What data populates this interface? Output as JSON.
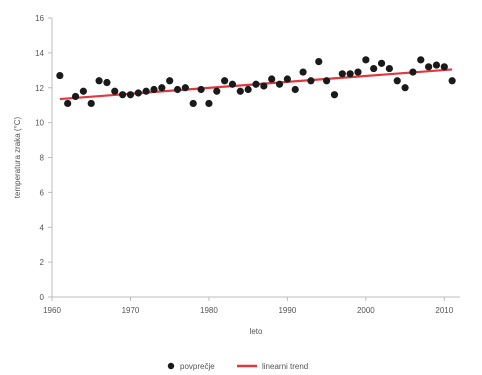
{
  "chart_data": {
    "type": "scatter",
    "title": "",
    "xlabel": "leto",
    "ylabel": "temperatura zraka (°C)",
    "xlim": [
      1960,
      2012
    ],
    "ylim": [
      0,
      16
    ],
    "x_ticks": [
      1960,
      1970,
      1980,
      1990,
      2000,
      2010
    ],
    "x_tick_labels": [
      "1960",
      "1970",
      "1980",
      "1990",
      "2000",
      "2010"
    ],
    "y_ticks": [
      0,
      2,
      4,
      6,
      8,
      10,
      12,
      14,
      16
    ],
    "y_tick_labels": [
      "0",
      "2",
      "4",
      "6",
      "8",
      "10",
      "12",
      "14",
      "16"
    ],
    "grid": false,
    "legend_position": "bottom",
    "series": [
      {
        "name": "povprečje",
        "kind": "scatter",
        "color": "#1a1a1a",
        "x": [
          1961,
          1962,
          1963,
          1964,
          1965,
          1966,
          1967,
          1968,
          1969,
          1970,
          1971,
          1972,
          1973,
          1974,
          1975,
          1976,
          1977,
          1978,
          1979,
          1980,
          1981,
          1982,
          1983,
          1984,
          1985,
          1986,
          1987,
          1988,
          1989,
          1990,
          1991,
          1992,
          1993,
          1994,
          1995,
          1996,
          1997,
          1998,
          1999,
          2000,
          2001,
          2002,
          2003,
          2004,
          2005,
          2006,
          2007,
          2008,
          2009,
          2010,
          2011
        ],
        "y": [
          12.7,
          11.1,
          11.5,
          11.8,
          11.1,
          12.4,
          12.3,
          11.8,
          11.6,
          11.6,
          11.7,
          11.8,
          11.9,
          12.0,
          12.4,
          11.9,
          12.0,
          11.1,
          11.9,
          11.1,
          11.8,
          12.4,
          12.2,
          11.8,
          11.9,
          12.2,
          12.1,
          12.5,
          12.2,
          12.5,
          11.9,
          12.9,
          12.4,
          13.5,
          12.4,
          11.6,
          12.8,
          12.8,
          12.9,
          13.6,
          13.1,
          13.4,
          13.1,
          12.4,
          12.0,
          12.9,
          13.6,
          13.2,
          13.3,
          13.2,
          12.4
        ]
      },
      {
        "name": "linearni trend",
        "kind": "line",
        "color": "#e0383e",
        "x": [
          1961,
          2011
        ],
        "y": [
          11.35,
          13.05
        ]
      }
    ]
  }
}
